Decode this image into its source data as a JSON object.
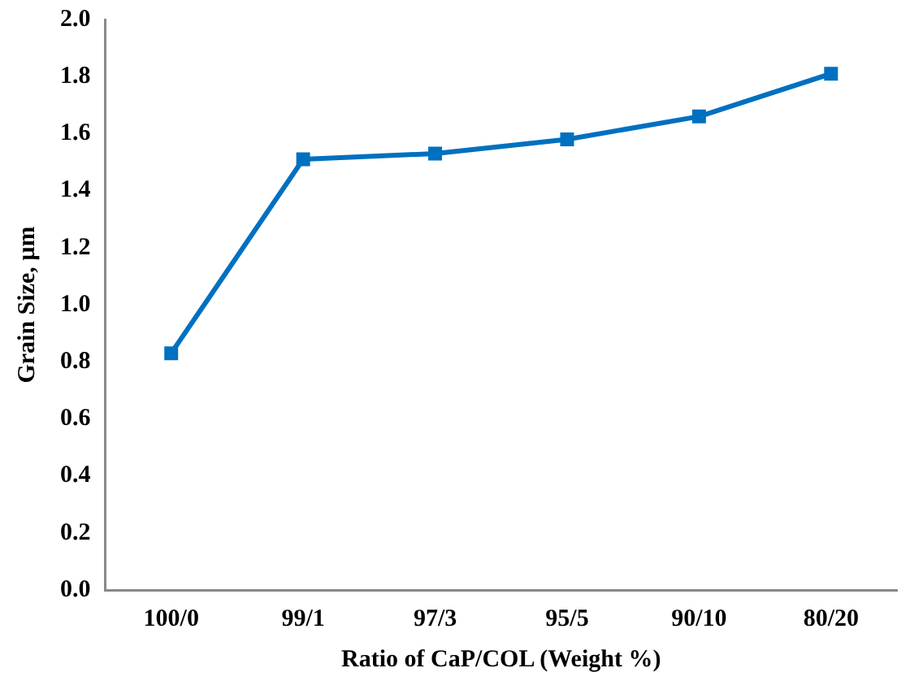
{
  "chart_data": {
    "type": "line",
    "xlabel": "Ratio of CaP/COL (Weight %)",
    "ylabel": "Grain Size, µm",
    "categories": [
      "100/0",
      "99/1",
      "97/3",
      "95/5",
      "90/10",
      "80/20"
    ],
    "series": [
      {
        "color": "#0070c0",
        "values": [
          0.83,
          1.51,
          1.53,
          1.58,
          1.66,
          1.81
        ]
      }
    ],
    "ylim": [
      0,
      2
    ],
    "yticks": [
      {
        "value": 0,
        "label": "0.0"
      },
      {
        "value": 0.2,
        "label": "0.2"
      },
      {
        "value": 0.4,
        "label": "0.4"
      },
      {
        "value": 0.6,
        "label": "0.6"
      },
      {
        "value": 0.8,
        "label": "0.8"
      },
      {
        "value": 1,
        "label": "1.0"
      },
      {
        "value": 1.2,
        "label": "1.2"
      },
      {
        "value": 1.4,
        "label": "1.4"
      },
      {
        "value": 1.6,
        "label": "1.6"
      },
      {
        "value": 1.8,
        "label": "1.8"
      },
      {
        "value": 2,
        "label": "2.0"
      }
    ],
    "grid": false,
    "legend": false,
    "marker": "square",
    "line_style": "solid"
  }
}
